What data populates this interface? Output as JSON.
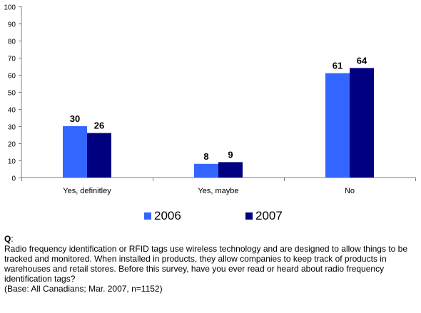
{
  "chart_data": {
    "type": "bar",
    "categories": [
      "Yes, definitley",
      "Yes, maybe",
      "No"
    ],
    "series": [
      {
        "name": "2006",
        "values": [
          30,
          8,
          61
        ],
        "color": "#3366ff"
      },
      {
        "name": "2007",
        "values": [
          26,
          9,
          64
        ],
        "color": "#000080"
      }
    ],
    "ylim": [
      0,
      100
    ],
    "yticks": [
      0,
      10,
      20,
      30,
      40,
      50,
      60,
      70,
      80,
      90,
      100
    ],
    "grid": false,
    "legend": "bottom"
  },
  "note": {
    "q_label": "Q",
    "q_colon": ":",
    "question": "Radio frequency identification or RFID tags use wireless technology and are designed to allow things to be tracked and monitored. When installed in products, they allow companies to keep track of products in warehouses and retail stores. Before this survey, have you ever read or heard about radio frequency identification tags?",
    "base": "(Base: All Canadians; Mar. 2007, n=1152)"
  }
}
